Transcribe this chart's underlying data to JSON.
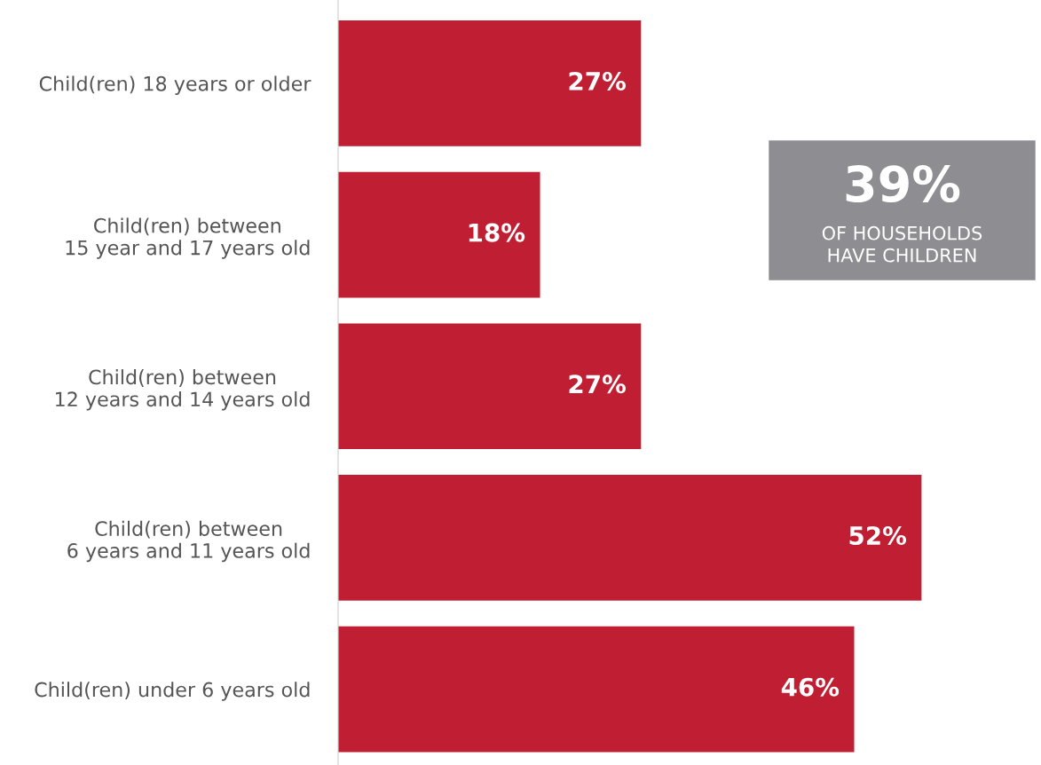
{
  "chart_data": {
    "type": "bar",
    "orientation": "horizontal",
    "categories": [
      "Child(ren) 18 years or older",
      "Child(ren) between\n15 year and 17 years old",
      "Child(ren) between\n12 years and 14 years old",
      "Child(ren) between\n6 years and 11 years old",
      "Child(ren) under 6 years old"
    ],
    "values": [
      27,
      18,
      27,
      52,
      46
    ],
    "value_labels": [
      "27%",
      "18%",
      "27%",
      "52%",
      "46%"
    ],
    "color": "#c01f33",
    "tick_labels": "y",
    "grid": false,
    "legend": false,
    "annotations": [
      "39%",
      "OF HOUSEHOLDS\nHAVE CHILDREN"
    ]
  }
}
